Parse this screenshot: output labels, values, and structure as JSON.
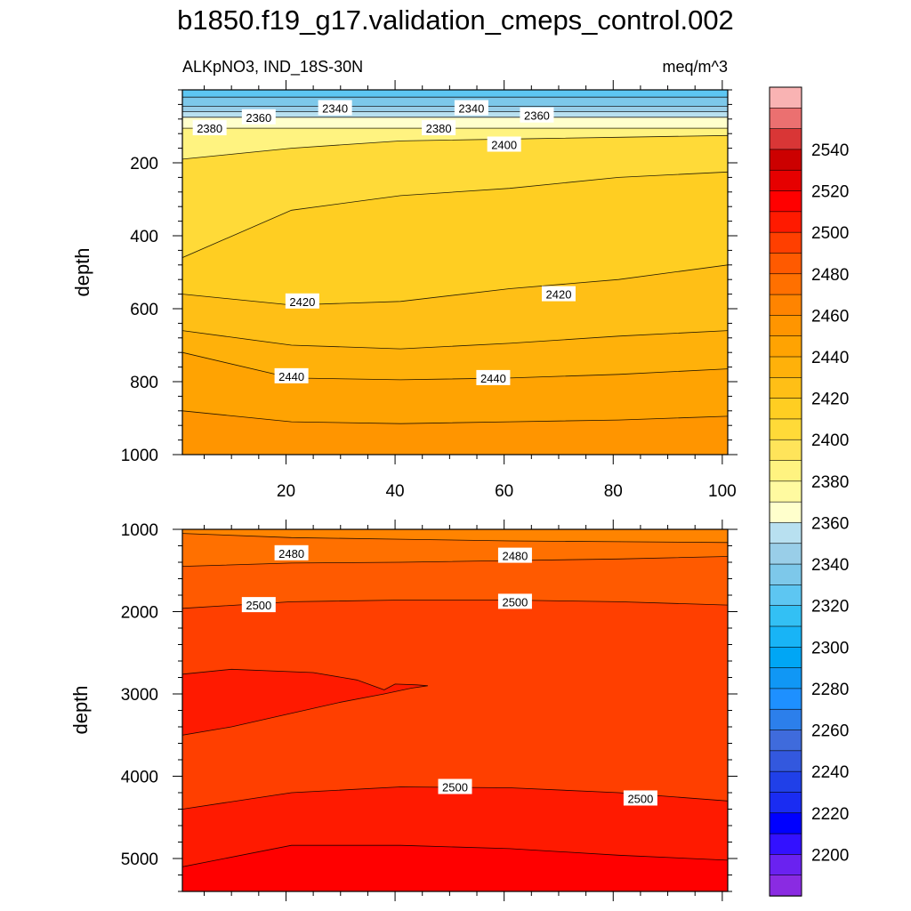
{
  "figure": {
    "title": "b1850.f19_g17.validation_cmeps_control.002",
    "left_subtitle": "ALKpNO3, IND_18S-30N",
    "right_subtitle": "meq/m^3"
  },
  "chart_data": [
    {
      "type": "heatmap",
      "panel": "upper",
      "title": "b1850.f19_g17.validation_cmeps_control.002",
      "xlabel": "",
      "ylabel": "depth",
      "xlim": [
        1,
        101
      ],
      "ylim": [
        1000,
        0
      ],
      "xticks": [
        20,
        40,
        60,
        80,
        100
      ],
      "yticks": [
        200,
        400,
        600,
        800,
        1000
      ],
      "x_tick_labels_shown": true,
      "contour_interval": 10,
      "bands": [
        {
          "top": [
            0,
            0,
            0,
            0,
            0,
            0
          ],
          "bottom": [
            20,
            20,
            20,
            20,
            20,
            20
          ],
          "value": 2325
        },
        {
          "top": [
            20,
            20,
            20,
            20,
            20,
            20
          ],
          "bottom": [
            45,
            45,
            45,
            45,
            45,
            45
          ],
          "value": 2335
        },
        {
          "top": [
            45,
            45,
            45,
            45,
            45,
            45
          ],
          "bottom": [
            60,
            60,
            60,
            60,
            60,
            60
          ],
          "value": 2345
        },
        {
          "top": [
            60,
            60,
            60,
            60,
            60,
            60
          ],
          "bottom": [
            75,
            75,
            75,
            75,
            75,
            75
          ],
          "value": 2355
        },
        {
          "top": [
            75,
            75,
            75,
            75,
            75,
            75
          ],
          "bottom": [
            105,
            105,
            105,
            105,
            105,
            105
          ],
          "value": 2365
        },
        {
          "top": [
            105,
            105,
            105,
            105,
            105,
            105
          ],
          "bottom": [
            190,
            160,
            140,
            135,
            130,
            125
          ],
          "value": 2385
        },
        {
          "top": [
            190,
            160,
            140,
            135,
            130,
            125
          ],
          "bottom": [
            460,
            330,
            290,
            270,
            240,
            225
          ],
          "value": 2405
        },
        {
          "top": [
            460,
            330,
            290,
            270,
            240,
            225
          ],
          "bottom": [
            560,
            590,
            580,
            545,
            520,
            480
          ],
          "value": 2415
        },
        {
          "top": [
            560,
            590,
            580,
            545,
            520,
            480
          ],
          "bottom": [
            660,
            700,
            710,
            695,
            675,
            660
          ],
          "value": 2425
        },
        {
          "top": [
            660,
            700,
            710,
            695,
            675,
            660
          ],
          "bottom": [
            720,
            790,
            795,
            790,
            780,
            765
          ],
          "value": 2435
        },
        {
          "top": [
            720,
            790,
            795,
            790,
            780,
            765
          ],
          "bottom": [
            880,
            910,
            915,
            910,
            905,
            895
          ],
          "value": 2445
        },
        {
          "top": [
            880,
            910,
            915,
            910,
            905,
            895
          ],
          "bottom": [
            1000,
            1000,
            1000,
            1000,
            1000,
            1000
          ],
          "value": 2455
        }
      ],
      "contour_levels_shown": [
        2340,
        2360,
        2380,
        2400,
        2420,
        2440
      ],
      "contour_labels": [
        {
          "text": "2340",
          "x": 29,
          "y": 50
        },
        {
          "text": "2340",
          "x": 54,
          "y": 50
        },
        {
          "text": "2360",
          "x": 15,
          "y": 75
        },
        {
          "text": "2360",
          "x": 66,
          "y": 70
        },
        {
          "text": "2380",
          "x": 6,
          "y": 105
        },
        {
          "text": "2380",
          "x": 48,
          "y": 105
        },
        {
          "text": "2400",
          "x": 60,
          "y": 150
        },
        {
          "text": "2420",
          "x": 23,
          "y": 580
        },
        {
          "text": "2420",
          "x": 70,
          "y": 560
        },
        {
          "text": "2440",
          "x": 21,
          "y": 785
        },
        {
          "text": "2440",
          "x": 58,
          "y": 790
        }
      ]
    },
    {
      "type": "heatmap",
      "panel": "lower",
      "xlabel": "",
      "ylabel": "depth",
      "xlim": [
        1,
        101
      ],
      "ylim": [
        5400,
        1000
      ],
      "xticks": [
        20,
        40,
        60,
        80,
        100
      ],
      "yticks": [
        1000,
        2000,
        3000,
        4000,
        5000
      ],
      "x_tick_labels_shown": false,
      "contour_interval": 10,
      "bands": [
        {
          "top": [
            1000,
            1000,
            1000,
            1000,
            1000,
            1000
          ],
          "bottom": [
            1050,
            1100,
            1120,
            1140,
            1150,
            1160
          ],
          "value": 2465
        },
        {
          "top": [
            1050,
            1100,
            1120,
            1140,
            1150,
            1160
          ],
          "bottom": [
            1450,
            1410,
            1400,
            1380,
            1360,
            1330
          ],
          "value": 2475
        },
        {
          "top": [
            1450,
            1410,
            1400,
            1380,
            1360,
            1330
          ],
          "bottom": [
            1960,
            1880,
            1860,
            1860,
            1880,
            1920
          ],
          "value": 2485
        },
        {
          "top": [
            1960,
            1880,
            1860,
            1860,
            1880,
            1920
          ],
          "bottom": [
            4400,
            4200,
            4130,
            4140,
            4200,
            4300
          ],
          "value": 2495
        },
        {
          "top": [
            4400,
            4200,
            4130,
            4140,
            4200,
            4300
          ],
          "bottom": [
            5100,
            4840,
            4840,
            4880,
            4960,
            5020
          ],
          "value": 2505
        },
        {
          "top": [
            5100,
            4840,
            4840,
            4880,
            4960,
            5020
          ],
          "bottom": [
            5400,
            5400,
            5400,
            5400,
            5400,
            5400
          ],
          "value": 2515
        }
      ],
      "patches": [
        {
          "value": 2505,
          "outline": [
            [
              1,
              2760
            ],
            [
              10,
              2700
            ],
            [
              25,
              2740
            ],
            [
              33,
              2830
            ],
            [
              38,
              2950
            ],
            [
              40,
              2880
            ],
            [
              44,
              2890
            ],
            [
              46,
              2900
            ],
            [
              43,
              2930
            ],
            [
              38,
              3000
            ],
            [
              30,
              3100
            ],
            [
              20,
              3250
            ],
            [
              10,
              3400
            ],
            [
              1,
              3500
            ]
          ]
        }
      ],
      "contour_levels_shown": [
        2480,
        2500
      ],
      "contour_labels": [
        {
          "text": "2480",
          "x": 21,
          "y": 1290
        },
        {
          "text": "2480",
          "x": 62,
          "y": 1320
        },
        {
          "text": "2500",
          "x": 15,
          "y": 1920
        },
        {
          "text": "2500",
          "x": 62,
          "y": 1880
        },
        {
          "text": "2500",
          "x": 51,
          "y": 4130
        },
        {
          "text": "2500",
          "x": 85,
          "y": 4270
        }
      ]
    }
  ],
  "colorbar": {
    "levels": [
      2190,
      2200,
      2210,
      2220,
      2230,
      2240,
      2250,
      2260,
      2270,
      2280,
      2290,
      2300,
      2310,
      2320,
      2330,
      2340,
      2350,
      2360,
      2370,
      2380,
      2390,
      2400,
      2410,
      2420,
      2430,
      2440,
      2450,
      2460,
      2470,
      2480,
      2490,
      2500,
      2510,
      2520,
      2530,
      2540,
      2550,
      2560
    ],
    "colors": [
      "#8A2BE2",
      "#6A22F0",
      "#3311FF",
      "#0000FF",
      "#1A2CF2",
      "#2040E8",
      "#3358DE",
      "#3F6BDC",
      "#2C7FEB",
      "#1E90FF",
      "#1097F5",
      "#00A6F5",
      "#18B4F6",
      "#33C0F4",
      "#5DC6F2",
      "#7DC8EA",
      "#99CEE8",
      "#B8E0F0",
      "#FFFFCC",
      "#FFFAA0",
      "#FFF380",
      "#FFE45A",
      "#FFDA38",
      "#FFCE22",
      "#FFBF16",
      "#FFB10A",
      "#FFA302",
      "#FF9500",
      "#FF8400",
      "#FF7000",
      "#FF5A00",
      "#FF3F00",
      "#FF1A00",
      "#FF0000",
      "#E60000",
      "#CC0000",
      "#D93636",
      "#EB7070",
      "#F9B3B3"
    ],
    "tick_labels": [
      "2200",
      "2220",
      "2240",
      "2260",
      "2280",
      "2300",
      "2320",
      "2340",
      "2360",
      "2380",
      "2400",
      "2420",
      "2440",
      "2460",
      "2480",
      "2500",
      "2520",
      "2540"
    ]
  }
}
